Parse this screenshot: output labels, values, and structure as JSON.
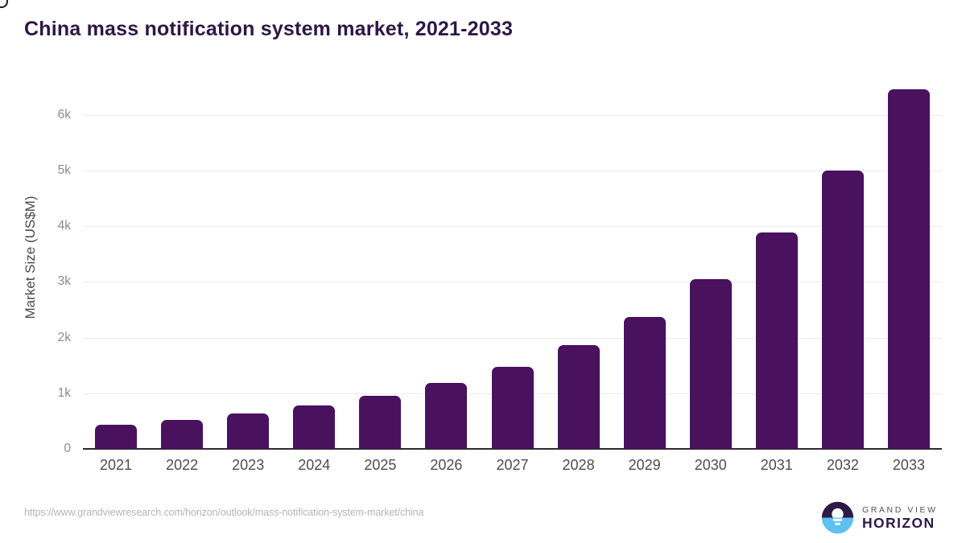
{
  "title": "China mass notification system market, 2021-2033",
  "chart_data": {
    "type": "bar",
    "title": "China mass notification system market, 2021-2033",
    "categories": [
      "2021",
      "2022",
      "2023",
      "2024",
      "2025",
      "2026",
      "2027",
      "2028",
      "2029",
      "2030",
      "2031",
      "2032",
      "2033"
    ],
    "values": [
      430,
      525,
      630,
      775,
      950,
      1185,
      1475,
      1870,
      2375,
      3050,
      3890,
      5000,
      6450
    ],
    "xlabel": "",
    "ylabel": "Market Size (US$M)",
    "ylim": [
      0,
      6500
    ],
    "yticks": [
      {
        "value": 0,
        "label": "0"
      },
      {
        "value": 1000,
        "label": "1k"
      },
      {
        "value": 2000,
        "label": "2k"
      },
      {
        "value": 3000,
        "label": "3k"
      },
      {
        "value": 4000,
        "label": "4k"
      },
      {
        "value": 5000,
        "label": "5k"
      },
      {
        "value": 6000,
        "label": "6k"
      }
    ],
    "grid": true,
    "legend": false,
    "bar_color": "#4a115f"
  },
  "colors": {
    "title_text": "#2d1747",
    "bar": "#4a115f",
    "gridline": "#ececec",
    "axis_line": "#2b2b2b",
    "x_tick_text": "#4d4d4d",
    "y_tick_text": "#8b8b8b",
    "url_text": "#b5b5b5",
    "logo_purple": "#2e1a47",
    "logo_blue": "#5ec1ef"
  },
  "footer": {
    "source_url": "https://www.grandviewresearch.com/horizon/outlook/mass-notification-system-market/china",
    "brand_line1": "GRAND VIEW",
    "brand_line2": "HORIZON"
  }
}
